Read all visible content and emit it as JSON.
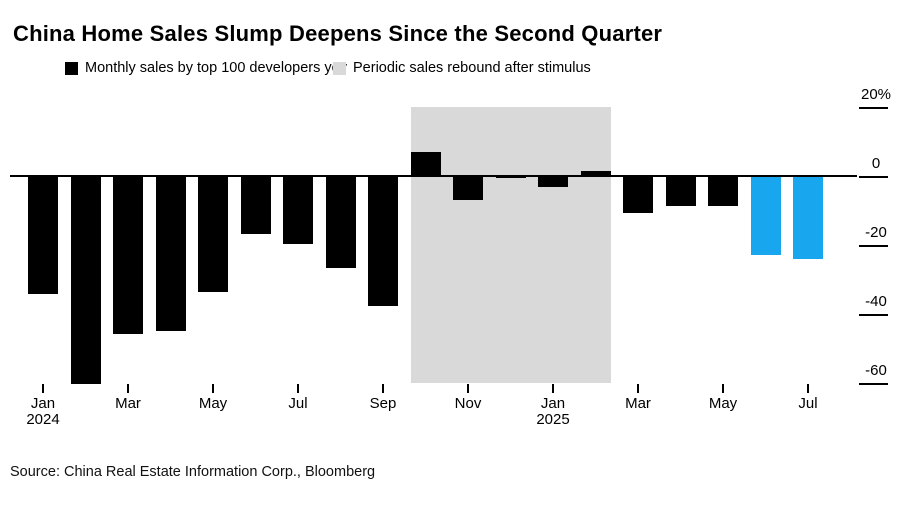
{
  "title": "China Home Sales Slump Deepens Since the Second Quarter",
  "legend": [
    {
      "label": "Monthly sales by top 100 developers yoy",
      "color": "#000000"
    },
    {
      "label": "Periodic sales rebound after stimulus",
      "color": "#d9d9d9"
    }
  ],
  "source": "Source: China Real Estate Information Corp., Bloomberg",
  "chart_data": {
    "type": "bar",
    "title": "China Home Sales Slump Deepens Since the Second Quarter",
    "categories": [
      "Jan 2024",
      "Feb 2024",
      "Mar 2024",
      "Apr 2024",
      "May 2024",
      "Jun 2024",
      "Jul 2024",
      "Aug 2024",
      "Sep 2024",
      "Oct 2024",
      "Nov 2024",
      "Dec 2024",
      "Jan 2025",
      "Feb 2025",
      "Mar 2025",
      "Apr 2025",
      "May 2025",
      "Jun 2025",
      "Jul 2025"
    ],
    "series": [
      {
        "name": "Monthly sales by top 100 developers yoy",
        "values": [
          -34.2,
          -60.2,
          -45.8,
          -44.9,
          -33.6,
          -16.7,
          -19.7,
          -26.8,
          -37.7,
          7.1,
          -6.9,
          -0.7,
          -3.2,
          1.4,
          -10.6,
          -8.7,
          -8.6,
          -22.8,
          -24.0
        ]
      }
    ],
    "unit": "%",
    "bar_color": "#000000",
    "highlight_color": "#18a7ee",
    "highlight_indices": [
      17,
      18
    ],
    "stimulus_band": {
      "label": "Periodic sales rebound after stimulus",
      "start_index": 9,
      "end_index": 13,
      "start": "Oct 2024",
      "end": "Feb 2025",
      "color": "#d9d9d9"
    },
    "ylim": [
      -60,
      20
    ],
    "yticks": [
      {
        "value": 20,
        "label": "20%"
      },
      {
        "value": 0,
        "label": "0"
      },
      {
        "value": -20,
        "label": "-20"
      },
      {
        "value": -40,
        "label": "-40"
      },
      {
        "value": -60,
        "label": "-60"
      }
    ],
    "xticks": [
      {
        "index": 0,
        "label": "Jan",
        "year": "2024"
      },
      {
        "index": 2,
        "label": "Mar"
      },
      {
        "index": 4,
        "label": "May"
      },
      {
        "index": 6,
        "label": "Jul"
      },
      {
        "index": 8,
        "label": "Sep"
      },
      {
        "index": 10,
        "label": "Nov"
      },
      {
        "index": 12,
        "label": "Jan",
        "year": "2025"
      },
      {
        "index": 14,
        "label": "Mar"
      },
      {
        "index": 16,
        "label": "May"
      },
      {
        "index": 18,
        "label": "Jul"
      }
    ],
    "grid": false,
    "legend_position": "top"
  }
}
